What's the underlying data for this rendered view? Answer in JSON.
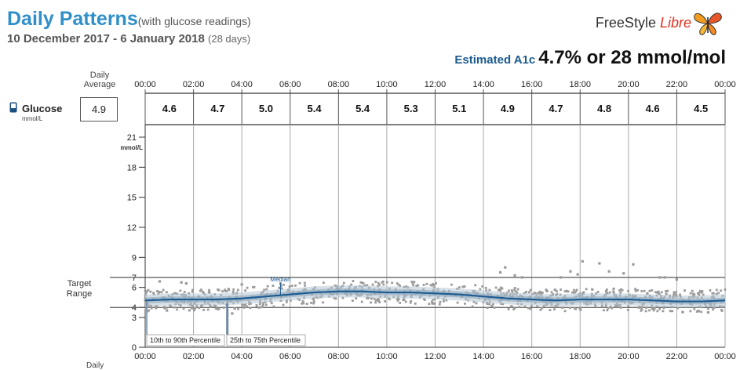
{
  "header": {
    "title": "Daily Patterns",
    "subtitle": "(with glucose readings)",
    "date_range": "10 December 2017 - 6 January 2018",
    "days": "(28 days)",
    "logo_free": "FreeStyle",
    "logo_libre": "Libre",
    "a1c_label": "Estimated A1c",
    "a1c_value": "4.7% or 28 mmol/mol"
  },
  "left": {
    "daily_average_label": "Daily Average",
    "glucose_label": "Glucose",
    "glucose_unit": "mmol/L",
    "daily_average_value": "4.9",
    "target_range_label": "Target Range",
    "daily_bottom_label": "Daily"
  },
  "colors": {
    "title": "#2f8fc9",
    "median_line": "#1d5c93",
    "percentile_band": "#b7c6d3",
    "readings": "#9a9a9a",
    "target_line": "#555555"
  },
  "chart_data": {
    "type": "line",
    "y_axis_unit": "mmol/L",
    "ylim": [
      0,
      22
    ],
    "y_ticks": [
      0,
      3,
      4,
      6,
      7,
      9,
      12,
      15,
      18,
      21
    ],
    "y_tick_labels": [
      "0",
      "3",
      "4",
      "6",
      "7",
      "9",
      "12",
      "15",
      "18",
      "21"
    ],
    "target_range": [
      4,
      7
    ],
    "x_ticks": [
      "00:00",
      "02:00",
      "04:00",
      "06:00",
      "08:00",
      "10:00",
      "12:00",
      "14:00",
      "16:00",
      "18:00",
      "20:00",
      "22:00",
      "00:00"
    ],
    "bin_averages": {
      "labels": [
        "4.6",
        "4.7",
        "5.0",
        "5.4",
        "5.4",
        "5.3",
        "5.1",
        "4.9",
        "4.7",
        "4.8",
        "4.6",
        "4.5"
      ]
    },
    "median": {
      "label": "Median",
      "hours": [
        0,
        1,
        2,
        3,
        4,
        5,
        6,
        7,
        8,
        9,
        10,
        11,
        12,
        13,
        14,
        15,
        16,
        17,
        18,
        19,
        20,
        21,
        22,
        23,
        24
      ],
      "values": [
        4.7,
        4.8,
        4.8,
        4.8,
        4.9,
        5.1,
        5.3,
        5.5,
        5.6,
        5.6,
        5.5,
        5.5,
        5.4,
        5.3,
        5.1,
        4.9,
        4.8,
        4.7,
        4.8,
        4.8,
        4.8,
        4.7,
        4.6,
        4.6,
        4.7
      ]
    },
    "p25_75": {
      "label": "25th to 75th Percentile",
      "low": [
        4.4,
        4.5,
        4.5,
        4.5,
        4.6,
        4.8,
        5.0,
        5.2,
        5.3,
        5.3,
        5.2,
        5.2,
        5.1,
        5.0,
        4.8,
        4.6,
        4.5,
        4.4,
        4.5,
        4.5,
        4.5,
        4.4,
        4.3,
        4.3,
        4.4
      ],
      "high": [
        5.0,
        5.1,
        5.1,
        5.1,
        5.2,
        5.4,
        5.6,
        5.8,
        5.9,
        5.9,
        5.8,
        5.8,
        5.7,
        5.6,
        5.4,
        5.2,
        5.1,
        5.0,
        5.1,
        5.1,
        5.1,
        5.0,
        4.9,
        4.9,
        5.0
      ]
    },
    "p10_90": {
      "label": "10th to 90th Percentile",
      "low": [
        4.1,
        4.2,
        4.2,
        4.2,
        4.3,
        4.5,
        4.7,
        4.9,
        5.0,
        5.0,
        4.9,
        4.9,
        4.8,
        4.7,
        4.5,
        4.3,
        4.2,
        4.1,
        4.2,
        4.2,
        4.2,
        4.1,
        4.0,
        4.0,
        4.1
      ],
      "high": [
        5.3,
        5.4,
        5.4,
        5.4,
        5.5,
        5.7,
        5.9,
        6.1,
        6.2,
        6.2,
        6.1,
        6.1,
        6.0,
        5.9,
        5.7,
        5.5,
        5.4,
        5.3,
        5.4,
        5.4,
        5.4,
        5.3,
        5.2,
        5.2,
        5.3
      ]
    },
    "outlier_readings": {
      "hours": [
        0.6,
        0.9,
        1.5,
        1.7,
        3.6,
        4.0,
        5.6,
        14.7,
        14.9,
        15.3,
        15.6,
        17.2,
        17.6,
        17.9,
        18.1,
        18.8,
        19.2,
        19.8,
        20.2,
        21.3,
        21.5,
        22.0,
        23.3
      ],
      "values": [
        6.6,
        3.7,
        6.5,
        6.4,
        3.4,
        6.3,
        6.4,
        7.5,
        8.0,
        7.2,
        7.0,
        7.0,
        7.6,
        7.3,
        8.6,
        8.4,
        7.6,
        7.4,
        8.3,
        7.0,
        7.0,
        6.8,
        3.5
      ]
    }
  }
}
